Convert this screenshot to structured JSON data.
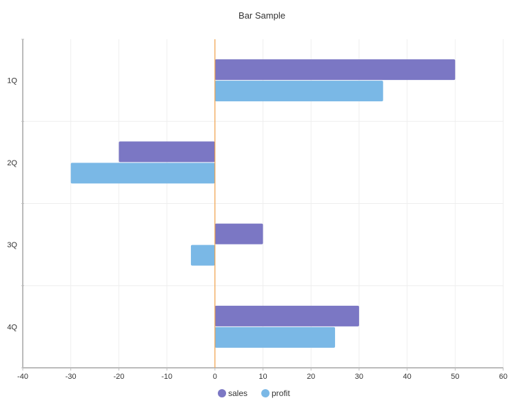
{
  "chart_data": {
    "type": "bar",
    "orientation": "horizontal",
    "title": "Bar Sample",
    "categories": [
      "1Q",
      "2Q",
      "3Q",
      "4Q"
    ],
    "series": [
      {
        "name": "sales",
        "values": [
          50,
          -20,
          10,
          30
        ],
        "color": "#7b77c4"
      },
      {
        "name": "profit",
        "values": [
          35,
          -30,
          -5,
          25
        ],
        "color": "#7ab8e6"
      }
    ],
    "xlim": [
      -40,
      60
    ],
    "xticks": [
      -40,
      -30,
      -20,
      -10,
      0,
      10,
      20,
      30,
      40,
      50,
      60
    ],
    "grid": true,
    "legend_position": "bottom",
    "zero_line_color": "#f0a048",
    "axis_color": "#bbbbbb",
    "grid_color": "#eeeeee"
  }
}
